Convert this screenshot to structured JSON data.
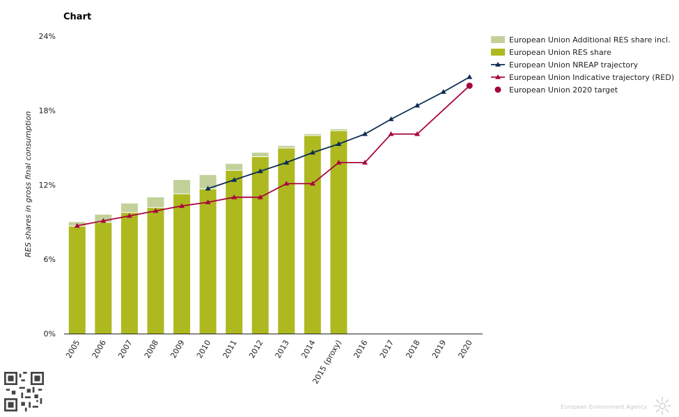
{
  "page": {
    "title": "Chart",
    "footer": "European Environment Agency"
  },
  "chart_data": {
    "type": "bar",
    "title": "Chart",
    "ylabel": "RES shares in gross final consumption",
    "xlabel": "",
    "ylim": [
      0,
      24
    ],
    "yticks": [
      "0%",
      "6%",
      "12%",
      "18%",
      "24%"
    ],
    "grid": false,
    "legend_position": "top-right",
    "categories": [
      "2005",
      "2006",
      "2007",
      "2008",
      "2009",
      "2010",
      "2011",
      "2012",
      "2013",
      "2014",
      "2015 (proxy)",
      "2016",
      "2017",
      "2018",
      "2019",
      "2020"
    ],
    "series": [
      {
        "name": "European Union Additional RES share incl.",
        "kind": "stacked-bar",
        "color": "#c2d19a",
        "values": [
          0.3,
          0.6,
          0.7,
          0.8,
          1.1,
          1.1,
          0.5,
          0.3,
          0.15,
          0.1,
          0.1,
          null,
          null,
          null,
          null,
          null
        ]
      },
      {
        "name": "European Union RES share",
        "kind": "bar",
        "color": "#adb91f",
        "values": [
          8.7,
          9.0,
          9.8,
          10.2,
          11.3,
          11.7,
          13.2,
          14.3,
          15.0,
          16.0,
          16.4,
          null,
          null,
          null,
          null,
          null
        ]
      },
      {
        "name": "European Union NREAP trajectory",
        "kind": "line",
        "color": "#0d2c54",
        "values": [
          null,
          null,
          null,
          null,
          null,
          11.7,
          12.4,
          13.1,
          13.8,
          14.6,
          15.3,
          16.1,
          17.3,
          18.4,
          19.5,
          20.7
        ]
      },
      {
        "name": "European Union Indicative trajectory (RED)",
        "kind": "line",
        "color": "#a8063e",
        "values": [
          8.7,
          9.1,
          9.5,
          9.9,
          10.3,
          10.6,
          11.0,
          11.0,
          12.1,
          12.1,
          13.8,
          13.8,
          16.1,
          16.1,
          null,
          20.0
        ]
      },
      {
        "name": "European Union 2020 target",
        "kind": "point",
        "color": "#a8063e",
        "values": [
          null,
          null,
          null,
          null,
          null,
          null,
          null,
          null,
          null,
          null,
          null,
          null,
          null,
          null,
          null,
          20.0
        ]
      }
    ]
  }
}
